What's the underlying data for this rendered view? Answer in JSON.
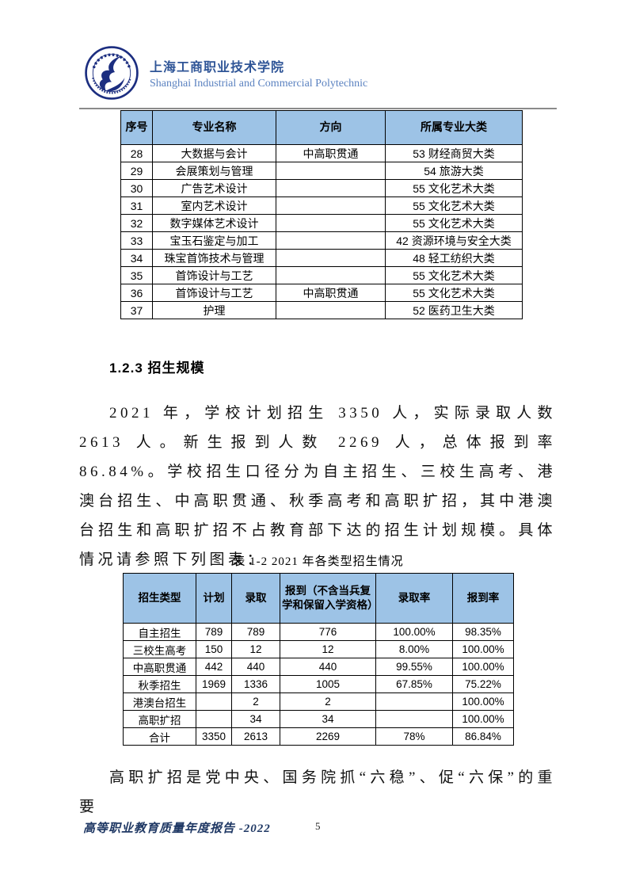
{
  "header": {
    "title_cn": "上海工商职业技术学院",
    "title_en": "Shanghai Industrial and Commercial Polytechnic",
    "logo": "school-seal",
    "colors": {
      "title_cn": "#2F5597",
      "title_en": "#5B82C0",
      "seal": "#1C2E80"
    }
  },
  "table1": {
    "headers": [
      "序号",
      "专业名称",
      "方向",
      "所属专业大类"
    ],
    "header_bg": "#9DC3E6",
    "rows": [
      [
        "28",
        "大数据与会计",
        "中高职贯通",
        "53 财经商贸大类"
      ],
      [
        "29",
        "会展策划与管理",
        "",
        "54 旅游大类"
      ],
      [
        "30",
        "广告艺术设计",
        "",
        "55 文化艺术大类"
      ],
      [
        "31",
        "室内艺术设计",
        "",
        "55 文化艺术大类"
      ],
      [
        "32",
        "数字媒体艺术设计",
        "",
        "55 文化艺术大类"
      ],
      [
        "33",
        "宝玉石鉴定与加工",
        "",
        "42 资源环境与安全大类"
      ],
      [
        "34",
        "珠宝首饰技术与管理",
        "",
        "48 轻工纺织大类"
      ],
      [
        "35",
        "首饰设计与工艺",
        "",
        "55 文化艺术大类"
      ],
      [
        "36",
        "首饰设计与工艺",
        "中高职贯通",
        "55 文化艺术大类"
      ],
      [
        "37",
        "护理",
        "",
        "52 医药卫生大类"
      ]
    ]
  },
  "section": {
    "heading": "1.2.3 招生规模",
    "paragraph": "2021 年，学校计划招生 3350 人，实际录取人数 2613 人。新生报到人数 2269 人，总体报到率 86.84%。学校招生口径分为自主招生、三校生高考、港澳台招生、中高职贯通、秋季高考和高职扩招，其中港澳台招生和高职扩招不占教育部下达的招生计划规模。具体情况请参照下列图表："
  },
  "table2": {
    "caption": "表 1-2 2021 年各类型招生情况",
    "headers": [
      "招生类型",
      "计划",
      "录取",
      "报到（不含当兵复学和保留入学资格）",
      "录取率",
      "报到率"
    ],
    "header_bg": "#9DC3E6",
    "rows": [
      [
        "自主招生",
        "789",
        "789",
        "776",
        "100.00%",
        "98.35%"
      ],
      [
        "三校生高考",
        "150",
        "12",
        "12",
        "8.00%",
        "100.00%"
      ],
      [
        "中高职贯通",
        "442",
        "440",
        "440",
        "99.55%",
        "100.00%"
      ],
      [
        "秋季招生",
        "1969",
        "1336",
        "1005",
        "67.85%",
        "75.22%"
      ],
      [
        "港澳台招生",
        "",
        "2",
        "2",
        "",
        "100.00%"
      ],
      [
        "高职扩招",
        "",
        "34",
        "34",
        "",
        "100.00%"
      ],
      [
        "合计",
        "3350",
        "2613",
        "2269",
        "78%",
        "86.84%"
      ]
    ]
  },
  "closing_paragraph": "高职扩招是党中央、国务院抓“六稳”、促“六保”的重要",
  "footer": {
    "report_title": "高等职业教育质量年度报告 -2022",
    "page_number": "5",
    "color": "#1F3864"
  }
}
